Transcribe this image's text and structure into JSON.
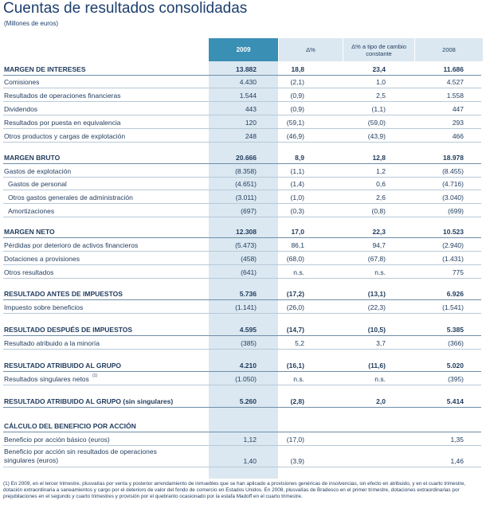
{
  "header": {
    "title": "Cuentas de resultados consolidadas",
    "subtitle": "(Millones de euros)"
  },
  "columns": [
    "2009",
    "Δ%",
    "Δ% a tipo de cambio constante",
    "2008"
  ],
  "rows": [
    {
      "label": "MARGEN DE INTERESES",
      "bold": true,
      "v": [
        "13.882",
        "18,8",
        "23,4",
        "11.686"
      ]
    },
    {
      "label": "Comisiones",
      "v": [
        "4.430",
        "(2,1)",
        "1,0",
        "4.527"
      ]
    },
    {
      "label": "Resultados de operaciones financieras",
      "v": [
        "1.544",
        "(0,9)",
        "2,5",
        "1.558"
      ]
    },
    {
      "label": "Dividendos",
      "v": [
        "443",
        "(0,9)",
        "(1,1)",
        "447"
      ]
    },
    {
      "label": "Resultados por puesta en equivalencia",
      "v": [
        "120",
        "(59,1)",
        "(59,0)",
        "293"
      ]
    },
    {
      "label": "Otros productos y cargas de explotación",
      "v": [
        "248",
        "(46,9)",
        "(43,9)",
        "466"
      ]
    },
    {
      "label": "MARGEN BRUTO",
      "bold": true,
      "v": [
        "20.666",
        "8,9",
        "12,8",
        "18.978"
      ]
    },
    {
      "label": "Gastos de explotación",
      "v": [
        "(8.358)",
        "(1,1)",
        "1,2",
        "(8.455)"
      ]
    },
    {
      "label": "Gastos de personal",
      "indent": true,
      "v": [
        "(4.651)",
        "(1,4)",
        "0,6",
        "(4.716)"
      ]
    },
    {
      "label": "Otros gastos generales de administración",
      "indent": true,
      "v": [
        "(3.011)",
        "(1,0)",
        "2,6",
        "(3.040)"
      ]
    },
    {
      "label": "Amortizaciones",
      "indent": true,
      "v": [
        "(697)",
        "(0,3)",
        "(0,8)",
        "(699)"
      ]
    },
    {
      "label": "MARGEN NETO",
      "bold": true,
      "v": [
        "12.308",
        "17,0",
        "22,3",
        "10.523"
      ]
    },
    {
      "label": "Pérdidas por deterioro de activos financieros",
      "v": [
        "(5.473)",
        "86,1",
        "94,7",
        "(2.940)"
      ]
    },
    {
      "label": "Dotaciones a provisiones",
      "v": [
        "(458)",
        "(68,0)",
        "(67,8)",
        "(1.431)"
      ]
    },
    {
      "label": "Otros resultados",
      "v": [
        "(641)",
        "n.s.",
        "n.s.",
        "775"
      ]
    },
    {
      "label": "RESULTADO ANTES DE IMPUESTOS",
      "bold": true,
      "v": [
        "5.736",
        "(17,2)",
        "(13,1)",
        "6.926"
      ]
    },
    {
      "label": "Impuesto sobre beneficios",
      "v": [
        "(1.141)",
        "(26,0)",
        "(22,3)",
        "(1.541)"
      ]
    },
    {
      "label": "RESULTADO DESPUÉS DE IMPUESTOS",
      "bold": true,
      "v": [
        "4.595",
        "(14,7)",
        "(10,5)",
        "5.385"
      ]
    },
    {
      "label": "Resultado atribuido a la minoría",
      "v": [
        "(385)",
        "5,2",
        "3,7",
        "(366)"
      ]
    },
    {
      "label": "RESULTADO ATRIBUIDO AL GRUPO",
      "bold": true,
      "v": [
        "4.210",
        "(16,1)",
        "(11,6)",
        "5.020"
      ]
    },
    {
      "label": "Resultados singulares netos",
      "sup": "(1)",
      "v": [
        "(1.050)",
        "n.s.",
        "n.s.",
        "(395)"
      ]
    },
    {
      "label": "RESULTADO ATRIBUIDO AL GRUPO (sin singulares)",
      "bold": true,
      "v": [
        "5.260",
        "(2,8)",
        "2,0",
        "5.414"
      ]
    },
    {
      "label": "CÁLCULO DEL BENEFICIO POR ACCIÓN",
      "bold": true,
      "v": [
        "",
        "",
        "",
        ""
      ]
    },
    {
      "label": "Beneficio por acción básico (euros)",
      "v": [
        "1,12",
        "(17,0)",
        "",
        "1,35"
      ]
    },
    {
      "label": "Beneficio por acción sin resultados de operaciones singulares (euros)",
      "tall": true,
      "v": [
        "1,40",
        "(3,9)",
        "",
        "1,46"
      ]
    }
  ],
  "footnote": "(1) En 2009, en el tercer trimestre, plusvalías por venta y posterior arrendamiento de inmuebles que se han aplicado a provisiones genéricas de insolvencias, sin efecto en atribuido, y en el cuarto trimestre, dotación extraordinaria a saneamientos y cargo por el deterioro de valor del fondo de comercio en Estados Unidos. En 2008, plusvalías de Bradesco en el primer trimestre, dotaciones extraordinarias por prejubilaciones en el segundo y cuarto trimestres y provisión por el quebranto ocasionado por la estafa Madoff en el cuarto trimestre."
}
